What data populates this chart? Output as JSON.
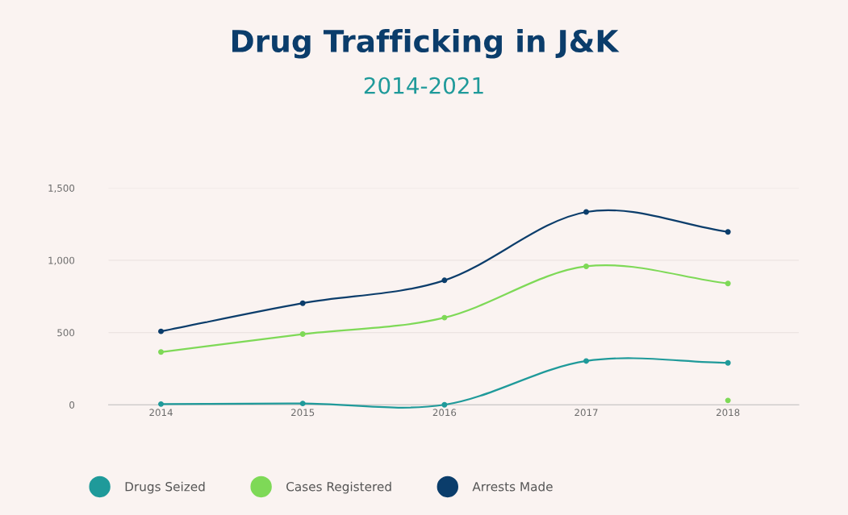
{
  "chart_data": {
    "type": "line",
    "title": "Drug Trafficking in J&K",
    "subtitle": "2014-2021",
    "categories": [
      "2014",
      "2015",
      "2016",
      "2017",
      "2018"
    ],
    "series": [
      {
        "name": "Drugs Seized",
        "color": "#1f9a9a",
        "values": [
          5,
          9,
          0,
          303,
          290
        ]
      },
      {
        "name": "Cases Registered",
        "color": "#7ed957",
        "values": [
          365,
          489,
          603,
          958,
          839
        ]
      },
      {
        "name": "Arrests Made",
        "color": "#0b3d6b",
        "values": [
          508,
          703,
          861,
          1334,
          1196
        ]
      },
      {
        "type": "scatter",
        "color": "#7ed957",
        "values": [
          null,
          null,
          null,
          null,
          30
        ]
      }
    ],
    "ylim": [
      0,
      1500
    ],
    "yticks": [
      {
        "value": 0,
        "label": "0"
      },
      {
        "value": 500,
        "label": "500"
      },
      {
        "value": 1000,
        "label": "1,000"
      },
      {
        "value": 1500,
        "label": "1,500"
      }
    ],
    "grid": "y",
    "legend": "bottom",
    "marker": "circle",
    "line_style": "solid"
  }
}
